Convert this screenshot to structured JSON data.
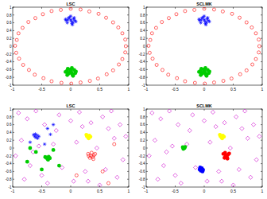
{
  "chart_data": [
    {
      "type": "scatter",
      "title": "LSC",
      "xlim": [
        -1,
        1
      ],
      "ylim": [
        -1,
        1
      ],
      "xticks": [
        -1,
        -0.5,
        0,
        0.5,
        1
      ],
      "yticks": [
        -1,
        -0.8,
        -0.6,
        -0.4,
        -0.2,
        0,
        0.2,
        0.4,
        0.6,
        0.8,
        1
      ],
      "series": [
        {
          "color": "#ff0000",
          "marker": "circle",
          "x": [
            0.95,
            0.94,
            0.89,
            0.82,
            0.73,
            0.61,
            0.48,
            0.32,
            0.17,
            0,
            -0.17,
            -0.33,
            -0.48,
            -0.61,
            -0.73,
            -0.83,
            -0.9,
            -0.93,
            -0.96,
            -0.94,
            -0.89,
            -0.82,
            -0.72,
            -0.62,
            -0.47,
            -0.33,
            -0.16,
            0.01,
            0.17,
            0.33,
            0.47,
            0.62,
            0.73,
            0.83,
            0.89,
            0.94
          ],
          "values": [
            0,
            0.17,
            0.33,
            0.48,
            0.61,
            0.73,
            0.83,
            0.89,
            0.94,
            0.96,
            0.93,
            0.9,
            0.82,
            0.72,
            0.62,
            0.47,
            0.33,
            0.16,
            0.01,
            -0.17,
            -0.32,
            -0.48,
            -0.61,
            -0.73,
            -0.82,
            -0.9,
            -0.94,
            -0.96,
            -0.93,
            -0.89,
            -0.83,
            -0.72,
            -0.62,
            -0.47,
            -0.33,
            -0.16
          ]
        },
        {
          "color": "#0000ff",
          "marker": "star",
          "x": [
            -0.08,
            -0.04,
            0.0,
            0.05,
            0.09,
            -0.06,
            0.02,
            0.07,
            -0.02,
            0.04,
            -0.09,
            0.01,
            0.06,
            -0.05,
            0.03,
            0.0
          ],
          "values": [
            0.66,
            0.72,
            0.68,
            0.7,
            0.63,
            0.6,
            0.58,
            0.66,
            0.74,
            0.61,
            0.69,
            0.64,
            0.73,
            0.67,
            0.55,
            0.77
          ]
        },
        {
          "color": "#00cc00",
          "marker": "dot",
          "x": [
            -0.07,
            -0.03,
            0.01,
            0.06,
            0.08,
            -0.05,
            0.03,
            0.09,
            -0.01,
            0.04,
            -0.09,
            0.0,
            0.05,
            -0.04,
            0.02,
            -0.06
          ],
          "values": [
            -0.64,
            -0.7,
            -0.67,
            -0.61,
            -0.69,
            -0.58,
            -0.73,
            -0.65,
            -0.6,
            -0.76,
            -0.66,
            -0.62,
            -0.71,
            -0.68,
            -0.56,
            -0.74
          ]
        }
      ]
    },
    {
      "type": "scatter",
      "title": "SCLMK",
      "xlim": [
        -1,
        1
      ],
      "ylim": [
        -1,
        1
      ],
      "xticks": [
        -1,
        -0.5,
        0,
        0.5,
        1
      ],
      "yticks": [
        -1,
        -0.8,
        -0.6,
        -0.4,
        -0.2,
        0,
        0.2,
        0.4,
        0.6,
        0.8,
        1
      ],
      "series": [
        {
          "color": "#ff0000",
          "marker": "circle",
          "x": [
            0.95,
            0.94,
            0.89,
            0.82,
            0.73,
            0.61,
            0.48,
            0.32,
            0.17,
            0,
            -0.17,
            -0.33,
            -0.48,
            -0.61,
            -0.73,
            -0.83,
            -0.9,
            -0.93,
            -0.96,
            -0.94,
            -0.89,
            -0.82,
            -0.72,
            -0.62,
            -0.47,
            -0.33,
            -0.16,
            0.01,
            0.17,
            0.33,
            0.47,
            0.62,
            0.73,
            0.83,
            0.89,
            0.94
          ],
          "values": [
            0,
            0.17,
            0.33,
            0.48,
            0.61,
            0.73,
            0.83,
            0.89,
            0.94,
            0.96,
            0.93,
            0.9,
            0.82,
            0.72,
            0.62,
            0.47,
            0.33,
            0.16,
            0.01,
            -0.17,
            -0.32,
            -0.48,
            -0.61,
            -0.73,
            -0.82,
            -0.9,
            -0.94,
            -0.96,
            -0.93,
            -0.89,
            -0.83,
            -0.72,
            -0.62,
            -0.47,
            -0.33,
            -0.16
          ]
        },
        {
          "color": "#0000ff",
          "marker": "star",
          "x": [
            -0.08,
            -0.04,
            0.0,
            0.05,
            0.09,
            -0.06,
            0.02,
            0.07,
            -0.02,
            0.04,
            -0.09,
            0.01,
            0.06,
            -0.05,
            0.03,
            0.0
          ],
          "values": [
            0.66,
            0.72,
            0.68,
            0.7,
            0.63,
            0.6,
            0.58,
            0.66,
            0.74,
            0.61,
            0.69,
            0.64,
            0.73,
            0.67,
            0.55,
            0.77
          ]
        },
        {
          "color": "#00cc00",
          "marker": "dot",
          "x": [
            -0.07,
            -0.03,
            0.01,
            0.06,
            0.08,
            -0.05,
            0.03,
            0.09,
            -0.01,
            0.04,
            -0.09,
            0.0,
            0.05,
            -0.04,
            0.02,
            -0.06
          ],
          "values": [
            -0.64,
            -0.7,
            -0.67,
            -0.61,
            -0.69,
            -0.58,
            -0.73,
            -0.65,
            -0.6,
            -0.76,
            -0.66,
            -0.62,
            -0.71,
            -0.68,
            -0.56,
            -0.74
          ]
        }
      ]
    },
    {
      "type": "scatter",
      "title": "LSC",
      "xlim": [
        -1,
        1
      ],
      "ylim": [
        -1,
        1
      ],
      "xticks": [
        -1,
        -0.5,
        0,
        0.5,
        1
      ],
      "yticks": [
        -1,
        -0.8,
        -0.6,
        -0.4,
        -0.2,
        0,
        0.2,
        0.4,
        0.6,
        0.8,
        1
      ],
      "series": [
        {
          "color": "#cc00cc",
          "marker": "diamond",
          "x": [
            -0.9,
            -0.75,
            -0.6,
            -0.45,
            -0.2,
            0.0,
            0.15,
            0.35,
            0.55,
            0.7,
            0.85,
            0.95,
            -0.85,
            -0.55,
            -0.3,
            0.1,
            0.45,
            0.75,
            -0.95,
            -0.7,
            -0.15,
            0.25,
            0.6,
            0.9,
            -0.8,
            -0.4,
            0.05,
            0.5,
            0.8,
            -0.65,
            -0.25,
            0.3,
            0.65,
            -0.5,
            0.2
          ],
          "values": [
            0.9,
            0.75,
            0.95,
            0.6,
            0.85,
            0.7,
            0.92,
            0.65,
            0.8,
            0.95,
            0.6,
            0.3,
            0.2,
            0.05,
            0.1,
            0.15,
            0.0,
            0.25,
            -0.2,
            -0.45,
            -0.5,
            -0.6,
            -0.55,
            -0.3,
            -0.8,
            -0.9,
            -0.85,
            -0.95,
            -0.75,
            -0.1,
            0.45,
            -0.85,
            0.5,
            -0.7,
            0.55
          ]
        },
        {
          "color": "#ff0000",
          "marker": "circle",
          "x": [
            0.3,
            0.35,
            0.4,
            0.33,
            0.38,
            0.42,
            0.36,
            0.31,
            0.39,
            0.55,
            0.75,
            0.1,
            0.65
          ],
          "values": [
            -0.15,
            -0.2,
            -0.18,
            -0.25,
            -0.23,
            -0.15,
            -0.12,
            -0.2,
            -0.28,
            -0.6,
            0.1,
            -0.7,
            -0.9
          ]
        },
        {
          "color": "#0000ff",
          "marker": "star",
          "x": [
            -0.62,
            -0.58,
            -0.6,
            -0.55,
            -0.64,
            -0.57,
            -0.61,
            -0.4,
            -0.35,
            -0.7,
            -0.45,
            -0.3
          ],
          "values": [
            0.3,
            0.33,
            0.27,
            0.3,
            0.34,
            0.25,
            0.36,
            0.5,
            0.35,
            0.15,
            0.1,
            0.6
          ]
        },
        {
          "color": "#00cc00",
          "marker": "dot",
          "x": [
            -0.42,
            -0.38,
            -0.4,
            -0.36,
            -0.44,
            -0.39,
            -0.6,
            -0.7,
            -0.5,
            -0.2,
            -0.75,
            -0.3
          ],
          "values": [
            -0.25,
            -0.22,
            -0.28,
            -0.26,
            -0.23,
            -0.3,
            -0.1,
            0.0,
            -0.55,
            -0.45,
            -0.35,
            -0.05
          ]
        },
        {
          "color": "#ffff00",
          "marker": "dot",
          "x": [
            0.28,
            0.32,
            0.3,
            0.34,
            0.27,
            0.31
          ],
          "values": [
            0.3,
            0.32,
            0.27,
            0.29,
            0.34,
            0.25
          ]
        }
      ]
    },
    {
      "type": "scatter",
      "title": "SCLMK",
      "xlim": [
        -1,
        1
      ],
      "ylim": [
        -1,
        1
      ],
      "xticks": [
        -1,
        -0.5,
        0,
        0.5,
        1
      ],
      "yticks": [
        -1,
        -0.8,
        -0.6,
        -0.4,
        -0.2,
        0,
        0.2,
        0.4,
        0.6,
        0.8,
        1
      ],
      "series": [
        {
          "color": "#cc00cc",
          "marker": "diamond",
          "x": [
            -0.9,
            -0.75,
            -0.6,
            -0.45,
            -0.2,
            0.0,
            0.15,
            0.35,
            0.55,
            0.7,
            0.85,
            0.95,
            -0.85,
            -0.55,
            -0.3,
            0.1,
            0.45,
            0.75,
            -0.95,
            -0.7,
            -0.15,
            0.25,
            0.6,
            0.9,
            -0.8,
            -0.4,
            0.05,
            0.5,
            0.8,
            -0.65,
            -0.25,
            0.3,
            0.65,
            -0.5,
            0.2
          ],
          "values": [
            0.9,
            0.75,
            0.95,
            0.6,
            0.85,
            0.7,
            0.92,
            0.65,
            0.8,
            0.95,
            0.6,
            0.3,
            0.2,
            0.05,
            0.1,
            0.15,
            0.0,
            0.25,
            -0.2,
            -0.45,
            -0.5,
            -0.6,
            -0.55,
            -0.3,
            -0.8,
            -0.9,
            -0.85,
            -0.95,
            -0.75,
            -0.1,
            0.45,
            -0.85,
            0.5,
            -0.7,
            0.55
          ]
        },
        {
          "color": "#ff0000",
          "marker": "dot",
          "x": [
            0.33,
            0.37,
            0.41,
            0.35,
            0.39,
            0.43,
            0.36,
            0.4
          ],
          "values": [
            -0.15,
            -0.2,
            -0.17,
            -0.25,
            -0.23,
            -0.14,
            -0.12,
            -0.27
          ]
        },
        {
          "color": "#0000ff",
          "marker": "dot",
          "x": [
            -0.08,
            -0.04,
            -0.06,
            -0.02,
            -0.07,
            -0.03
          ],
          "values": [
            -0.55,
            -0.52,
            -0.58,
            -0.56,
            -0.5,
            -0.6
          ]
        },
        {
          "color": "#00cc00",
          "marker": "dot",
          "x": [
            -0.37,
            -0.34,
            -0.36,
            -0.33
          ],
          "values": [
            0.02,
            0.0,
            -0.02,
            0.03
          ]
        },
        {
          "color": "#ffff00",
          "marker": "dot",
          "x": [
            0.28,
            0.32,
            0.3,
            0.34,
            0.27,
            0.31
          ],
          "values": [
            0.3,
            0.32,
            0.27,
            0.29,
            0.34,
            0.25
          ]
        }
      ]
    }
  ]
}
